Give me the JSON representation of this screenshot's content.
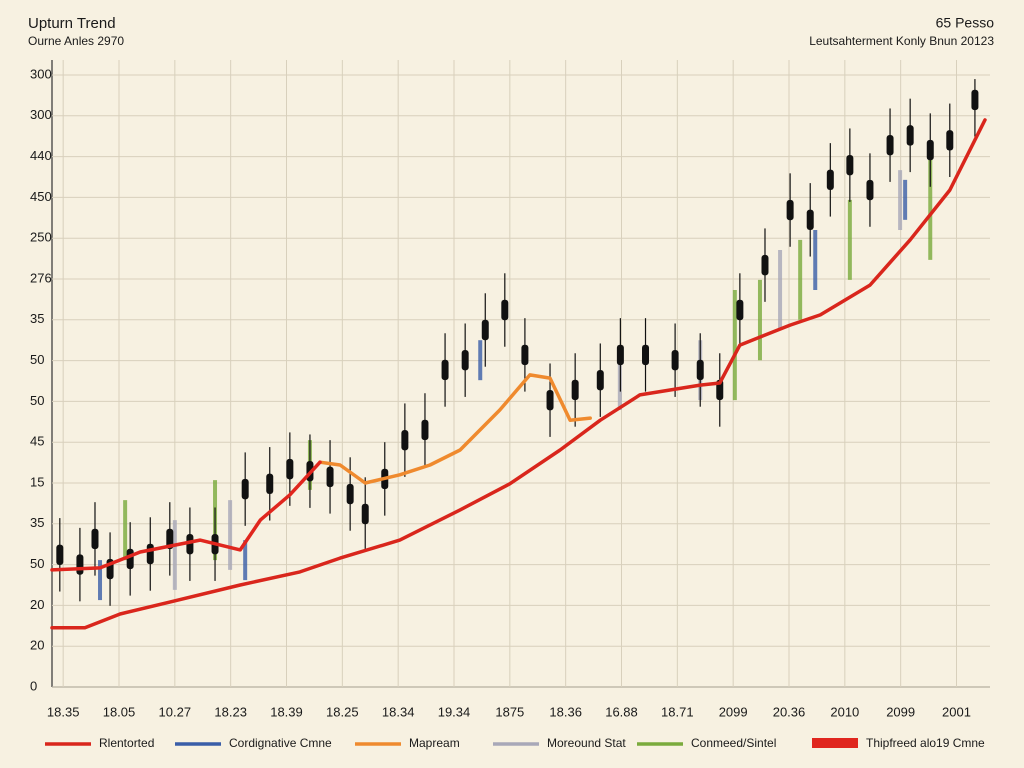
{
  "chart_data": {
    "type": "candlestick",
    "title": "Upturn Trend",
    "subtitle": "Ourne Anles 2970",
    "annotations": [
      "65 Pesso",
      "Leutsahterment Konly Bnun 20123"
    ],
    "xlim": [
      -0.2,
      16.6
    ],
    "ylim": [
      0,
      15
    ],
    "grid": true,
    "legend": "bottom",
    "xticks": [
      {
        "value": 0,
        "label": "18.35"
      },
      {
        "value": 1,
        "label": "18.05"
      },
      {
        "value": 2,
        "label": "10.27"
      },
      {
        "value": 3,
        "label": "18.23"
      },
      {
        "value": 4,
        "label": "18.39"
      },
      {
        "value": 5,
        "label": "18.25"
      },
      {
        "value": 6,
        "label": "18.34"
      },
      {
        "value": 7,
        "label": "19.34"
      },
      {
        "value": 8,
        "label": "1875"
      },
      {
        "value": 9,
        "label": "18.36"
      },
      {
        "value": 10,
        "label": "16.88"
      },
      {
        "value": 11,
        "label": "18.71"
      },
      {
        "value": 12,
        "label": "2099"
      },
      {
        "value": 13,
        "label": "20.36"
      },
      {
        "value": 14,
        "label": "2010"
      },
      {
        "value": 15,
        "label": "2099"
      },
      {
        "value": 16,
        "label": "2001"
      }
    ],
    "yticks": [
      {
        "value": 0,
        "label": "0"
      },
      {
        "value": 1,
        "label": "20"
      },
      {
        "value": 2,
        "label": "20"
      },
      {
        "value": 3,
        "label": "50"
      },
      {
        "value": 4,
        "label": "35"
      },
      {
        "value": 5,
        "label": "15"
      },
      {
        "value": 6,
        "label": "45"
      },
      {
        "value": 7,
        "label": "50"
      },
      {
        "value": 8,
        "label": "50"
      },
      {
        "value": 9,
        "label": "35"
      },
      {
        "value": 10,
        "label": "276"
      },
      {
        "value": 11,
        "label": "250"
      },
      {
        "value": 12,
        "label": "450"
      },
      {
        "value": 13,
        "label": "440"
      },
      {
        "value": 14,
        "label": "300"
      },
      {
        "value": 15,
        "label": "300"
      }
    ],
    "candles": {
      "color": "#111111",
      "x": [
        -0.06,
        0.3,
        0.57,
        0.84,
        1.2,
        1.56,
        1.91,
        2.27,
        2.72,
        3.26,
        3.7,
        4.06,
        4.42,
        4.78,
        5.14,
        5.41,
        5.76,
        6.12,
        6.48,
        6.84,
        7.2,
        7.56,
        7.91,
        8.27,
        8.72,
        9.17,
        9.62,
        9.98,
        10.43,
        10.96,
        11.41,
        11.76,
        12.12,
        12.57,
        13.02,
        13.38,
        13.74,
        14.09,
        14.45,
        14.81,
        15.17,
        15.53,
        15.88,
        16.33
      ],
      "open": [
        2.99,
        3.25,
        3.38,
        3.14,
        2.89,
        3.51,
        3.38,
        3.75,
        3.25,
        5.1,
        4.73,
        5.59,
        5.04,
        5.4,
        4.48,
        4.49,
        4.85,
        6.3,
        6.05,
        8.02,
        7.76,
        9.0,
        8.99,
        8.39,
        6.78,
        7.53,
        7.27,
        8.39,
        7.89,
        8.26,
        7.52,
        7.53,
        8.99,
        10.59,
        11.44,
        11.7,
        12.18,
        13.04,
        11.93,
        13.53,
        13.27,
        13.41,
        13.15,
        14.64
      ],
      "close": [
        3.49,
        2.75,
        3.88,
        2.64,
        3.39,
        3.01,
        3.88,
        3.25,
        3.75,
        4.6,
        5.23,
        5.09,
        5.54,
        4.9,
        4.98,
        3.99,
        5.35,
        5.8,
        6.55,
        7.52,
        8.26,
        8.5,
        9.49,
        7.89,
        7.28,
        7.03,
        7.77,
        7.89,
        8.39,
        7.76,
        8.02,
        7.03,
        9.49,
        10.09,
        11.94,
        11.2,
        12.68,
        12.54,
        12.43,
        13.03,
        13.77,
        12.91,
        13.65,
        14.14
      ],
      "high": [
        4.14,
        3.9,
        4.53,
        3.79,
        4.04,
        4.16,
        4.53,
        4.4,
        4.4,
        5.75,
        5.88,
        6.24,
        6.19,
        6.05,
        5.63,
        5.14,
        6.0,
        6.95,
        7.2,
        8.67,
        8.91,
        9.65,
        10.14,
        9.04,
        7.93,
        8.18,
        8.42,
        9.04,
        9.04,
        8.91,
        8.67,
        8.18,
        10.14,
        11.24,
        12.59,
        12.35,
        13.33,
        13.69,
        13.08,
        14.18,
        14.42,
        14.06,
        14.3,
        14.9
      ],
      "low": [
        2.34,
        2.1,
        2.73,
        1.99,
        2.24,
        2.36,
        2.73,
        2.6,
        2.6,
        3.95,
        4.08,
        4.44,
        4.39,
        4.25,
        3.83,
        3.34,
        4.2,
        5.15,
        5.4,
        6.87,
        7.11,
        7.85,
        8.34,
        7.24,
        6.13,
        6.38,
        6.62,
        7.24,
        7.24,
        7.11,
        6.87,
        6.38,
        8.34,
        9.44,
        10.79,
        10.55,
        11.53,
        11.89,
        11.28,
        12.38,
        12.62,
        12.26,
        12.5,
        13.49
      ]
    },
    "series": [
      {
        "name": "Rlentorted",
        "color": "#d9261c",
        "type": "line",
        "x": [
          -0.2,
          0.39,
          1.02,
          1.91,
          3.17,
          4.24,
          4.96,
          6.03,
          7.11,
          8.0,
          8.9,
          9.62,
          10.33,
          11.41,
          11.76,
          12.12,
          13.02,
          13.56,
          14.45,
          15.17,
          15.88,
          16.51
        ],
        "values": [
          1.45,
          1.45,
          1.79,
          2.08,
          2.5,
          2.82,
          3.16,
          3.6,
          4.34,
          4.98,
          5.81,
          6.54,
          7.16,
          7.4,
          7.45,
          8.38,
          8.87,
          9.12,
          9.85,
          10.96,
          12.18,
          13.9
        ]
      },
      {
        "name": "Cordignative Cmne",
        "color": "#3a5ea8",
        "type": "range",
        "x": [
          0.66,
          3.26,
          7.47,
          13.47,
          15.08
        ],
        "low": [
          2.13,
          2.62,
          7.52,
          9.73,
          11.45
        ],
        "high": [
          3.11,
          3.6,
          8.5,
          11.2,
          12.43
        ]
      },
      {
        "name": "Mapream",
        "color": "#ef8a2e",
        "type": "line",
        "x": [
          4.6,
          4.96,
          5.41,
          6.03,
          6.57,
          7.11,
          7.82,
          8.36,
          8.72,
          9.08,
          9.44
        ],
        "values": [
          5.51,
          5.44,
          5.0,
          5.2,
          5.44,
          5.81,
          6.79,
          7.65,
          7.57,
          6.54,
          6.59
        ]
      },
      {
        "name": "Moreound Stat",
        "color": "#a8a8b8",
        "type": "range",
        "x": [
          2.0,
          2.99,
          9.97,
          11.41,
          12.84,
          14.99
        ],
        "low": [
          2.38,
          2.87,
          6.79,
          7.03,
          8.75,
          11.2
        ],
        "high": [
          4.09,
          4.58,
          8.26,
          8.5,
          10.71,
          12.67
        ]
      },
      {
        "name": "Conmeed/Sintel",
        "color": "#7aab3c",
        "type": "range",
        "x": [
          1.11,
          2.72,
          4.42,
          12.03,
          12.48,
          13.2,
          14.09,
          15.53
        ],
        "low": [
          3.11,
          3.11,
          4.83,
          7.03,
          8.01,
          9.0,
          9.98,
          10.47
        ],
        "high": [
          4.58,
          5.07,
          6.05,
          9.73,
          9.98,
          10.96,
          11.94,
          13.16
        ]
      },
      {
        "name": "Thipfreed alo19 Cmne",
        "color": "#e0261e",
        "type": "line",
        "x": [
          -0.2,
          0.66,
          1.38,
          2.45,
          3.17,
          3.53,
          4.06,
          4.6
        ],
        "values": [
          2.87,
          2.92,
          3.31,
          3.6,
          3.36,
          4.09,
          4.71,
          5.51
        ]
      }
    ]
  }
}
